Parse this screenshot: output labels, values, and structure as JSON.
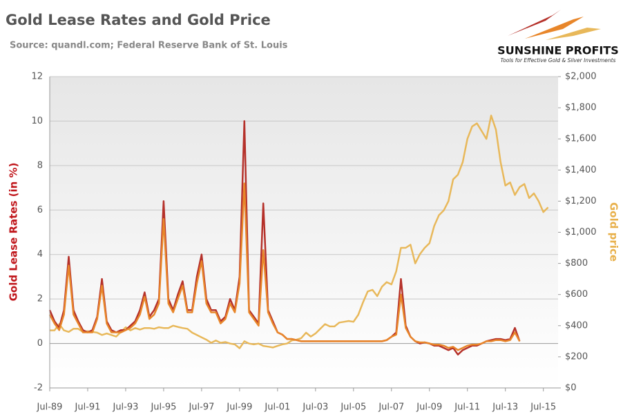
{
  "chart_data": {
    "type": "line",
    "title": "Gold Lease Rates and Gold Price",
    "subtitle": "Source: quandl.com; Federal Reserve Bank of St. Louis",
    "logo": {
      "name": "SUNSHINE PROFITS",
      "tagline": "Tools for Effective Gold & Silver Investments"
    },
    "y_label": "Gold Lease Rates (in %)",
    "y2_label": "Gold price",
    "y_label_color": "#c0161b",
    "y2_label_color": "#e8b04a",
    "grid": true,
    "categories": [
      "Jul-89",
      null,
      null,
      null,
      null,
      null,
      null,
      null,
      "Jul-91",
      null,
      null,
      null,
      null,
      null,
      null,
      null,
      "Jul-93",
      null,
      null,
      null,
      null,
      null,
      null,
      null,
      "Jul-95",
      null,
      null,
      null,
      null,
      null,
      null,
      null,
      "Jul-97",
      null,
      null,
      null,
      null,
      null,
      null,
      null,
      "Jul-99",
      null,
      null,
      null,
      null,
      null,
      null,
      null,
      "Jul-01",
      null,
      null,
      null,
      null,
      null,
      null,
      null,
      "Jul-03",
      null,
      null,
      null,
      null,
      null,
      null,
      null,
      "Jul-05",
      null,
      null,
      null,
      null,
      null,
      null,
      null,
      "Jul-07",
      null,
      null,
      null,
      null,
      null,
      null,
      null,
      "Jul-09",
      null,
      null,
      null,
      null,
      null,
      null,
      null,
      "Jul-11",
      null,
      null,
      null,
      null,
      null,
      null,
      null,
      "Jul-13",
      null,
      null,
      null,
      null,
      null,
      null,
      null,
      "Jul-15",
      null
    ],
    "ylim": [
      -2,
      12
    ],
    "yticks": [
      -2,
      0,
      2,
      4,
      6,
      8,
      10,
      12
    ],
    "y2lim": [
      0,
      2000
    ],
    "y2ticks": [
      {
        "value": 0,
        "label": "$0"
      },
      {
        "value": 200,
        "label": "$200"
      },
      {
        "value": 400,
        "label": "$400"
      },
      {
        "value": 600,
        "label": "$600"
      },
      {
        "value": 800,
        "label": "$800"
      },
      {
        "value": 1000,
        "label": "$1,000"
      },
      {
        "value": 1200,
        "label": "$1,200"
      },
      {
        "value": 1400,
        "label": "$1,400"
      },
      {
        "value": 1600,
        "label": "$1,600"
      },
      {
        "value": 1800,
        "label": "$1,800"
      },
      {
        "value": 2000,
        "label": "$2,000"
      }
    ],
    "series": [
      {
        "color": "#e8b85a",
        "axis": "y2",
        "values": [
          370,
          370,
          410,
          370,
          360,
          380,
          380,
          360,
          365,
          360,
          355,
          340,
          350,
          340,
          330,
          360,
          390,
          370,
          385,
          375,
          385,
          385,
          380,
          390,
          385,
          385,
          400,
          392,
          385,
          380,
          355,
          340,
          325,
          310,
          290,
          305,
          290,
          295,
          285,
          280,
          255,
          300,
          285,
          280,
          285,
          270,
          265,
          260,
          270,
          280,
          285,
          305,
          310,
          320,
          355,
          330,
          350,
          380,
          410,
          395,
          395,
          420,
          425,
          430,
          425,
          470,
          550,
          620,
          630,
          590,
          650,
          680,
          665,
          750,
          900,
          900,
          920,
          800,
          860,
          900,
          930,
          1040,
          1110,
          1140,
          1200,
          1340,
          1370,
          1450,
          1600,
          1680,
          1700,
          1650,
          1600,
          1750,
          1660,
          1450,
          1300,
          1320,
          1240,
          1290,
          1310,
          1220,
          1250,
          1200,
          1130,
          1160
        ]
      },
      {
        "color": "#b5312a",
        "values": [
          1.5,
          1.0,
          0.7,
          1.5,
          3.9,
          1.5,
          1.0,
          0.6,
          0.5,
          0.6,
          1.2,
          2.9,
          1.0,
          0.6,
          0.5,
          0.6,
          0.6,
          0.8,
          1.0,
          1.5,
          2.3,
          1.2,
          1.5,
          2.0,
          6.4,
          2.0,
          1.5,
          2.2,
          2.8,
          1.5,
          1.5,
          3.0,
          4.0,
          2.0,
          1.5,
          1.5,
          1.0,
          1.2,
          2.0,
          1.5,
          3.0,
          10.0,
          1.5,
          1.2,
          0.9,
          6.3,
          1.5,
          1.0,
          0.5,
          0.4,
          0.2,
          0.2,
          0.15,
          0.1,
          0.1,
          0.1,
          0.1,
          0.1,
          0.1,
          0.1,
          0.1,
          0.1,
          0.1,
          0.1,
          0.1,
          0.1,
          0.1,
          0.1,
          0.1,
          0.1,
          0.1,
          0.15,
          0.3,
          0.5,
          2.9,
          0.8,
          0.3,
          0.1,
          0.0,
          0.05,
          0.0,
          -0.1,
          -0.1,
          -0.2,
          -0.3,
          -0.2,
          -0.5,
          -0.3,
          -0.2,
          -0.1,
          -0.1,
          0.0,
          0.1,
          0.15,
          0.2,
          0.2,
          0.15,
          0.2,
          0.7,
          0.1,
          null,
          null,
          null,
          null,
          null,
          null
        ]
      },
      {
        "color": "#e8862a",
        "values": [
          1.3,
          0.9,
          0.6,
          1.3,
          3.5,
          1.3,
          0.9,
          0.5,
          0.5,
          0.5,
          1.1,
          2.6,
          0.9,
          0.5,
          0.5,
          0.5,
          0.6,
          0.7,
          0.9,
          1.3,
          2.1,
          1.1,
          1.3,
          1.8,
          5.6,
          1.8,
          1.4,
          2.0,
          2.6,
          1.4,
          1.4,
          2.7,
          3.7,
          1.8,
          1.4,
          1.4,
          0.9,
          1.1,
          1.8,
          1.4,
          2.7,
          7.2,
          1.4,
          1.1,
          0.8,
          4.2,
          1.4,
          0.9,
          0.5,
          0.4,
          0.2,
          0.2,
          0.15,
          0.1,
          0.1,
          0.1,
          0.1,
          0.1,
          0.1,
          0.1,
          0.1,
          0.1,
          0.1,
          0.1,
          0.1,
          0.1,
          0.1,
          0.1,
          0.1,
          0.1,
          0.1,
          0.15,
          0.3,
          0.4,
          2.2,
          0.7,
          0.3,
          0.1,
          0.05,
          0.05,
          0.0,
          -0.05,
          -0.05,
          -0.1,
          -0.2,
          -0.15,
          -0.3,
          -0.2,
          -0.1,
          -0.05,
          -0.05,
          0.0,
          0.1,
          0.1,
          0.15,
          0.15,
          0.1,
          0.15,
          0.5,
          0.1,
          null,
          null,
          null,
          null,
          null,
          null
        ]
      }
    ]
  }
}
